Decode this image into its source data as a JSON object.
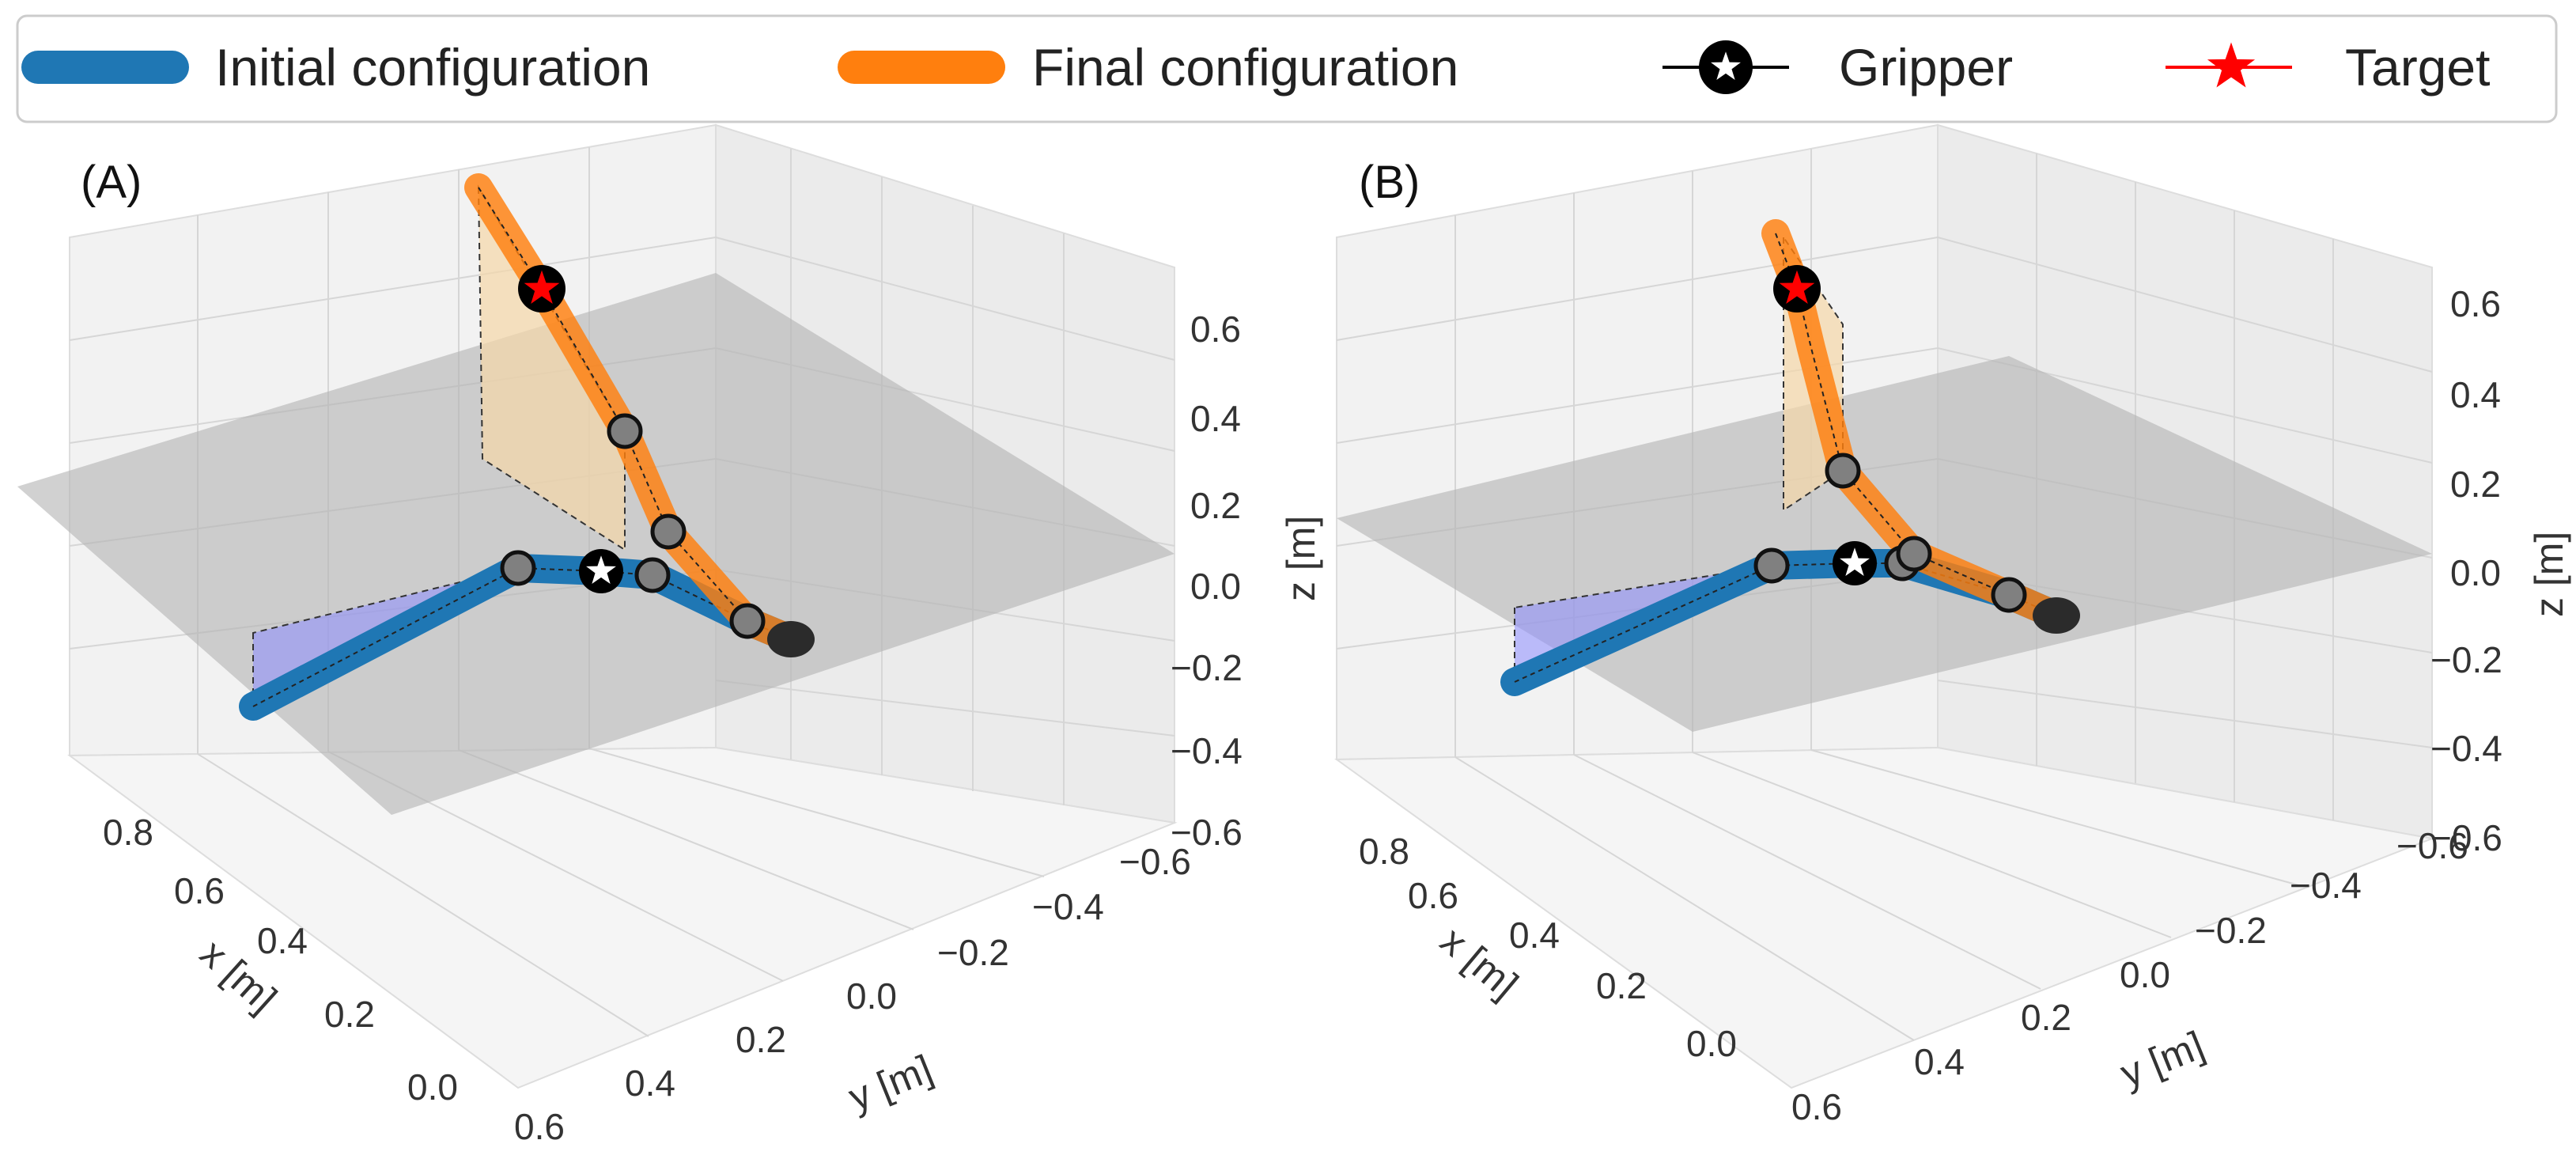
{
  "legend": {
    "initial": "Initial configuration",
    "final": "Final configuration",
    "gripper": "Gripper",
    "target": "Target"
  },
  "colors": {
    "initial": "#1f77b4",
    "final": "#ff7f0e",
    "target": "#ff0000",
    "joint": "#808080",
    "gripper_body": "#2b2b2b",
    "plane": "#b4b4b4"
  },
  "chart_data": [
    {
      "type": "3d-line",
      "panel": "(A)",
      "xlabel": "x [m]",
      "ylabel": "y [m]",
      "zlabel": "z [m]",
      "x_ticks": [
        "0.0",
        "0.2",
        "0.4",
        "0.6",
        "0.8"
      ],
      "y_ticks": [
        "0.6",
        "0.4",
        "0.2",
        "0.0",
        "−0.2",
        "−0.4",
        "−0.6"
      ],
      "z_ticks": [
        "0.6",
        "0.4",
        "0.2",
        "0.0",
        "−0.2",
        "−0.4",
        "−0.6"
      ],
      "series": [
        {
          "name": "Initial configuration",
          "points": [
            [
              0.85,
              0.3,
              0.0
            ],
            [
              0.35,
              0.0,
              0.1
            ],
            [
              0.1,
              -0.05,
              0.1
            ],
            [
              0.0,
              0.0,
              0.1
            ]
          ]
        },
        {
          "name": "Final configuration",
          "points": [
            [
              0.0,
              0.0,
              0.1
            ],
            [
              0.05,
              0.05,
              0.15
            ],
            [
              0.15,
              0.1,
              0.4
            ],
            [
              0.35,
              0.3,
              0.6
            ]
          ]
        }
      ],
      "target": [
        0.35,
        0.3,
        0.6
      ]
    },
    {
      "type": "3d-line",
      "panel": "(B)",
      "xlabel": "x [m]",
      "ylabel": "y [m]",
      "zlabel": "z [m]",
      "x_ticks": [
        "0.0",
        "0.2",
        "0.4",
        "0.6",
        "0.8"
      ],
      "y_ticks": [
        "0.6",
        "0.4",
        "0.2",
        "0.0",
        "−0.2",
        "−0.4",
        "−0.6"
      ],
      "z_ticks": [
        "0.6",
        "0.4",
        "0.2",
        "0.0",
        "−0.2",
        "−0.4",
        "−0.6"
      ],
      "series": [
        {
          "name": "Initial configuration",
          "points": [
            [
              0.85,
              0.3,
              0.0
            ],
            [
              0.4,
              0.0,
              0.1
            ],
            [
              0.1,
              -0.05,
              0.1
            ],
            [
              0.0,
              0.0,
              0.1
            ]
          ]
        },
        {
          "name": "Final configuration",
          "points": [
            [
              0.0,
              0.0,
              0.1
            ],
            [
              0.1,
              0.05,
              0.2
            ],
            [
              0.25,
              0.2,
              0.55
            ]
          ]
        }
      ],
      "target": [
        0.25,
        0.2,
        0.55
      ]
    }
  ]
}
